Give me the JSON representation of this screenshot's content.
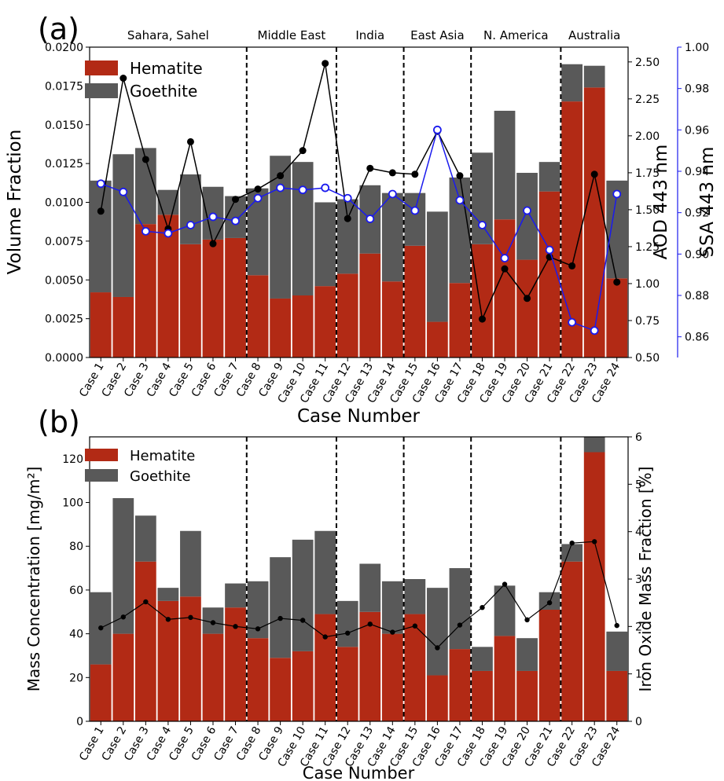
{
  "chart_data": [
    {
      "panel_label": "(a)",
      "type": "bar",
      "stacked": true,
      "categories": [
        "Case 1",
        "Case 2",
        "Case 3",
        "Case 4",
        "Case 5",
        "Case 6",
        "Case 7",
        "Case 8",
        "Case 9",
        "Case 10",
        "Case 11",
        "Case 12",
        "Case 13",
        "Case 14",
        "Case 15",
        "Case 16",
        "Case 17",
        "Case 18",
        "Case 19",
        "Case 20",
        "Case 21",
        "Case 22",
        "Case 23",
        "Case 24"
      ],
      "xlabel": "Case Number",
      "ylabel": "Volume Fraction",
      "ylim": [
        0,
        0.02
      ],
      "yticks": [
        "0.0000",
        "0.0025",
        "0.0050",
        "0.0075",
        "0.0100",
        "0.0125",
        "0.0150",
        "0.0175",
        "0.0200"
      ],
      "y2label": "AOD 443 nm",
      "y2lim": [
        0.5,
        2.6
      ],
      "y2ticks": [
        "0.50",
        "0.75",
        "1.00",
        "1.25",
        "1.50",
        "1.75",
        "2.00",
        "2.25",
        "2.50"
      ],
      "y3label": "SSA 443 nm",
      "y3lim": [
        0.85,
        1.0
      ],
      "y3ticks": [
        "0.86",
        "0.88",
        "0.90",
        "0.92",
        "0.94",
        "0.96",
        "0.98",
        "1.00"
      ],
      "series": [
        {
          "name": "Hematite",
          "values": [
            0.0042,
            0.0039,
            0.0086,
            0.0092,
            0.0073,
            0.0076,
            0.0077,
            0.0053,
            0.0038,
            0.004,
            0.0046,
            0.0054,
            0.0067,
            0.0049,
            0.0072,
            0.0023,
            0.0048,
            0.0073,
            0.0089,
            0.0063,
            0.0107,
            0.0165,
            0.0174,
            0.0051
          ]
        },
        {
          "name": "Goethite",
          "values": [
            0.0072,
            0.0092,
            0.0049,
            0.0016,
            0.0045,
            0.0034,
            0.0027,
            0.0056,
            0.0092,
            0.0086,
            0.0054,
            0.0048,
            0.0044,
            0.0057,
            0.0034,
            0.0071,
            0.0068,
            0.0059,
            0.007,
            0.0056,
            0.0019,
            0.0024,
            0.0014,
            0.0063
          ]
        }
      ],
      "aod_443nm": [
        1.49,
        2.39,
        1.84,
        1.37,
        1.96,
        1.27,
        1.57,
        1.64,
        1.73,
        1.9,
        2.49,
        1.44,
        1.78,
        1.75,
        1.74,
        2.03,
        1.73,
        0.76,
        1.1,
        0.9,
        1.18,
        1.12,
        1.74,
        1.01
      ],
      "ssa_443nm": [
        0.934,
        0.93,
        0.911,
        0.91,
        0.914,
        0.918,
        0.916,
        0.927,
        0.932,
        0.931,
        0.932,
        0.927,
        0.917,
        0.929,
        0.921,
        0.96,
        0.926,
        0.914,
        0.898,
        0.921,
        0.902,
        0.867,
        0.863,
        0.929
      ],
      "region_labels": [
        "Sahara, Sahel",
        "Middle East",
        "India",
        "East Asia",
        "N. America",
        "Australia"
      ],
      "region_dividers_after": [
        7,
        11,
        14,
        17,
        21
      ],
      "legend": "top-left",
      "colors": {
        "hematite": "#b22a15",
        "goethite": "#595959",
        "aod": "#000000",
        "ssa": "#1a1aee",
        "ssa_axis": "#1a1aee"
      },
      "grid": false
    },
    {
      "panel_label": "(b)",
      "type": "bar",
      "stacked": true,
      "categories": [
        "Case 1",
        "Case 2",
        "Case 3",
        "Case 4",
        "Case 5",
        "Case 6",
        "Case 7",
        "Case 8",
        "Case 9",
        "Case 10",
        "Case 11",
        "Case 12",
        "Case 13",
        "Case 14",
        "Case 15",
        "Case 16",
        "Case 17",
        "Case 18",
        "Case 19",
        "Case 20",
        "Case 21",
        "Case 22",
        "Case 23",
        "Case 24"
      ],
      "xlabel": "Case Number",
      "ylabel": "Mass Concentration [mg/m²]",
      "ylim": [
        0,
        130
      ],
      "yticks": [
        "0",
        "20",
        "40",
        "60",
        "80",
        "100",
        "120"
      ],
      "y2label": "Iron Oxide Mass Fraction [%]",
      "y2lim": [
        0,
        6
      ],
      "y2ticks": [
        "0",
        "1",
        "2",
        "3",
        "4",
        "5",
        "6"
      ],
      "series": [
        {
          "name": "Hematite",
          "values": [
            26,
            40,
            73,
            55,
            57,
            40,
            52,
            38,
            29,
            32,
            49,
            34,
            50,
            40,
            49,
            21,
            33,
            23,
            39,
            23,
            51,
            73,
            123,
            23
          ]
        },
        {
          "name": "Goethite",
          "values": [
            33,
            62,
            21,
            6,
            30,
            12,
            11,
            26,
            46,
            51,
            38,
            21,
            22,
            24,
            16,
            40,
            37,
            11,
            23,
            15,
            8,
            8,
            7,
            18
          ]
        }
      ],
      "iron_oxide_mass_fraction_pct": [
        1.97,
        2.2,
        2.52,
        2.15,
        2.19,
        2.08,
        2.0,
        1.95,
        2.17,
        2.13,
        1.78,
        1.86,
        2.05,
        1.88,
        2.01,
        1.55,
        2.03,
        2.4,
        2.89,
        2.14,
        2.5,
        3.76,
        3.79,
        2.02
      ],
      "region_dividers_after": [
        7,
        11,
        14,
        17,
        21
      ],
      "legend": "top-left",
      "colors": {
        "hematite": "#b22a15",
        "goethite": "#595959",
        "mass_fraction": "#000000"
      },
      "grid": false
    }
  ]
}
